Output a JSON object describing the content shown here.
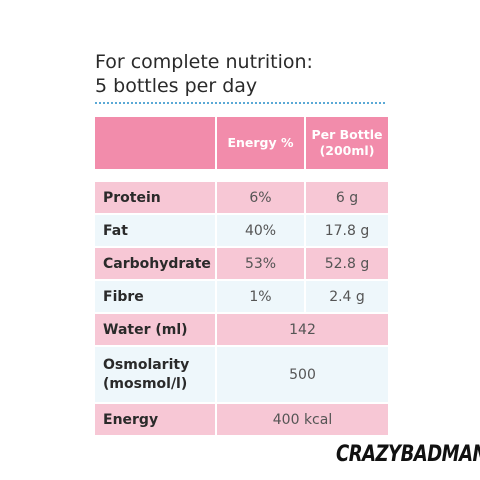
{
  "heading": {
    "line1": "For complete nutrition:",
    "line2": "5 bottles per day"
  },
  "table": {
    "headers": {
      "label": "",
      "energy": "Energy %",
      "per_bottle_line1": "Per Bottle",
      "per_bottle_line2": "(200ml)"
    },
    "rows": [
      {
        "label": "Protein",
        "energy": "6%",
        "per_bottle": "6 g"
      },
      {
        "label": "Fat",
        "energy": "40%",
        "per_bottle": "17.8 g"
      },
      {
        "label": "Carbohydrate",
        "energy": "53%",
        "per_bottle": "52.8 g"
      },
      {
        "label": "Fibre",
        "energy": "1%",
        "per_bottle": "2.4 g"
      }
    ],
    "water": {
      "label": "Water (ml)",
      "value": "142"
    },
    "osmolarity": {
      "label_line1": "Osmolarity",
      "label_line2": "(mosmol/l)",
      "value": "500"
    },
    "energy": {
      "label": "Energy",
      "value": "400 kcal"
    }
  },
  "brand": {
    "logo_text": "CRAZYBADMAN"
  },
  "colors": {
    "header_pink": "#f28cab",
    "row_pink": "#f7c7d5",
    "row_blue": "#eef7fb",
    "dotted_line": "#5aa9d6"
  }
}
